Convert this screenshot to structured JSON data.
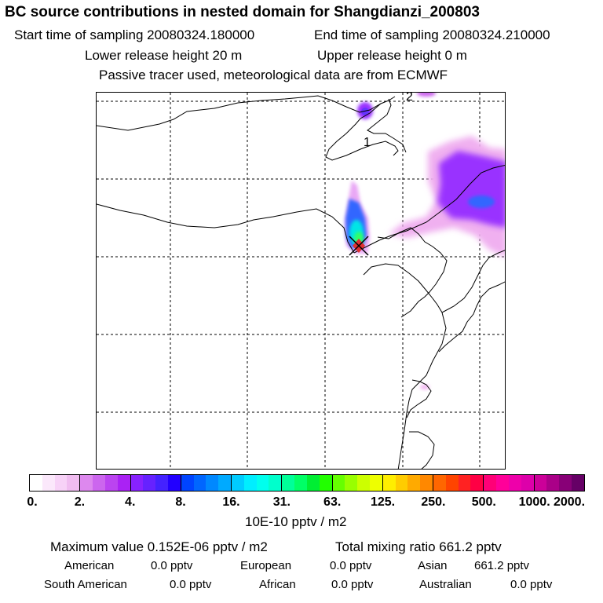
{
  "header": {
    "title": "BC  source contributions in nested domain for Shangdianzi_200803",
    "start_time": "Start time of sampling 20080324.180000",
    "end_time": "End time of sampling 20080324.210000",
    "lower_height": "Lower release height   20 m",
    "upper_height": "Upper release height    0 m",
    "tracer_note": "Passive tracer used, meteorological data are from ECMWF"
  },
  "map": {
    "contour_labels": [
      "1",
      "2"
    ],
    "colors": {
      "plume_pink": "#f0b0f0",
      "plume_violet": "#9933ff",
      "plume_blue": "#3366ff",
      "plume_cyan": "#00e6e6",
      "plume_green": "#33ff66",
      "receptor": "#e03030"
    }
  },
  "colorbar": {
    "ticks": [
      "0.",
      "2.",
      "4.",
      "8.",
      "16.",
      "31.",
      "63.",
      "125.",
      "250.",
      "500.",
      "1000.",
      "2000."
    ],
    "colors": [
      "#ffffff",
      "#fbe8fb",
      "#f7d2f7",
      "#f0bcf0",
      "#dd88ee",
      "#cc66ee",
      "#bb44f0",
      "#aa22f4",
      "#8822ff",
      "#6622ff",
      "#4422ff",
      "#2200ff",
      "#0044ff",
      "#0066ff",
      "#0088ff",
      "#00aaff",
      "#00ccff",
      "#00eeff",
      "#00ffee",
      "#00ffcc",
      "#00ff99",
      "#00ff66",
      "#00ee33",
      "#22ff00",
      "#66ff00",
      "#99ff00",
      "#ccff00",
      "#eeff00",
      "#ffee00",
      "#ffcc00",
      "#ffaa00",
      "#ff8800",
      "#ff6600",
      "#ff4400",
      "#ff2222",
      "#ff0044",
      "#ff0077",
      "#ff0099",
      "#ee00aa",
      "#dd00aa",
      "#cc0099",
      "#aa0088",
      "#880077",
      "#660066"
    ],
    "unit": "10E-10 pptv / m2"
  },
  "summary": {
    "max_value": "Maximum value  0.152E-06 pptv / m2",
    "total_mixing": "Total mixing ratio      661.2 pptv",
    "american_label": "American",
    "american_value": "0.0 pptv",
    "european_label": "European",
    "european_value": "0.0 pptv",
    "asian_label": "Asian",
    "asian_value": "661.2 pptv",
    "south_american_label": "South American",
    "south_american_value": "0.0 pptv",
    "african_label": "African",
    "african_value": "0.0 pptv",
    "australian_label": "Australian",
    "australian_value": "0.0 pptv"
  }
}
